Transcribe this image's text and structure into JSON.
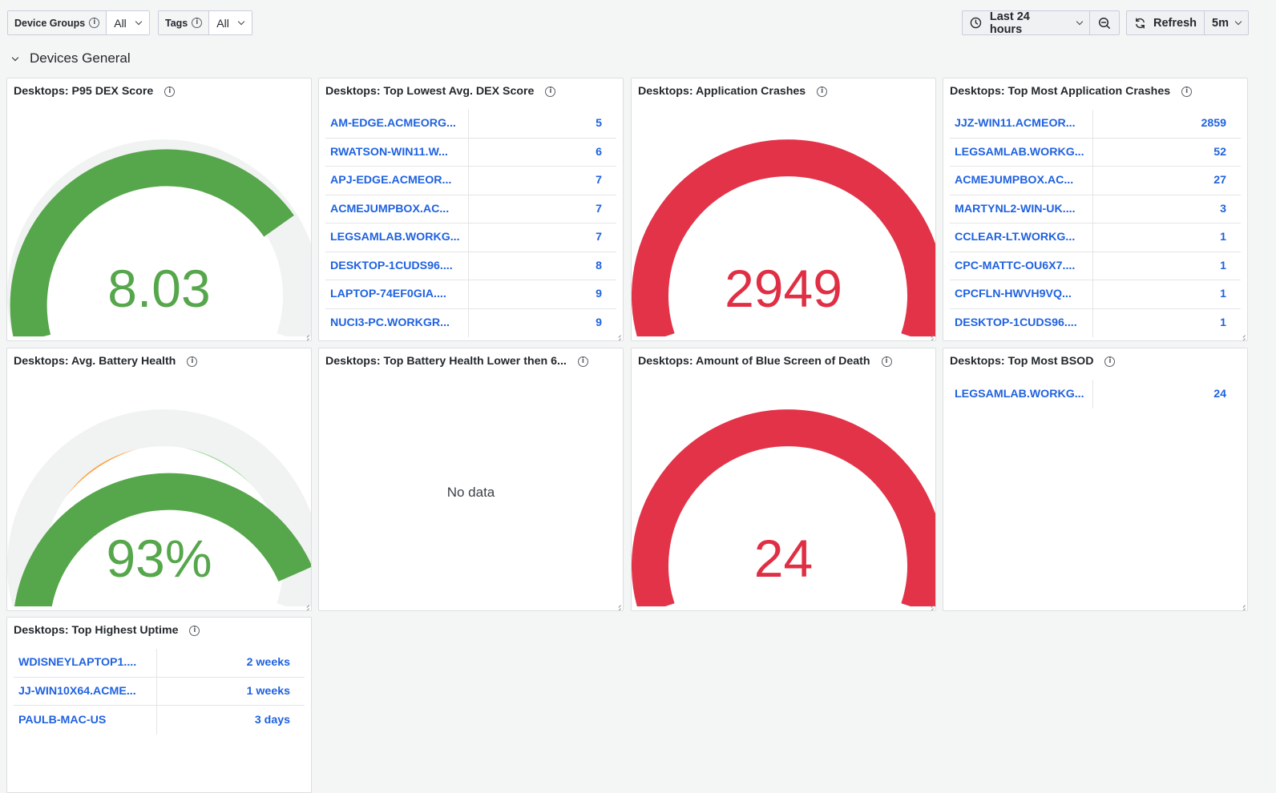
{
  "toolbar": {
    "device_groups_label": "Device Groups",
    "device_groups_value": "All",
    "tags_label": "Tags",
    "tags_value": "All",
    "time_range": "Last 24 hours",
    "refresh_label": "Refresh",
    "refresh_interval": "5m"
  },
  "row": {
    "title": "Devices General"
  },
  "colors": {
    "green": "#56a64b",
    "light_green": "#96d98d",
    "orange": "#ff9830",
    "orange_dark": "#f2802a",
    "yellow_orange": "#f7b261",
    "red": "#e02f44",
    "red_fill": "#e33348",
    "link": "#1f62e0"
  },
  "panels": {
    "p95_dex": {
      "title": "Desktops: P95 DEX Score",
      "value": "8.03",
      "fraction": 0.803
    },
    "lowest_dex": {
      "title": "Desktops: Top Lowest Avg. DEX Score",
      "rows": [
        {
          "name": "AM-EDGE.ACMEORG...",
          "value": "5"
        },
        {
          "name": "RWATSON-WIN11.W...",
          "value": "6"
        },
        {
          "name": "APJ-EDGE.ACMEOR...",
          "value": "7"
        },
        {
          "name": "ACMEJUMPBOX.AC...",
          "value": "7"
        },
        {
          "name": "LEGSAMLAB.WORKG...",
          "value": "7"
        },
        {
          "name": "DESKTOP-1CUDS96....",
          "value": "8"
        },
        {
          "name": "LAPTOP-74EF0GIA....",
          "value": "9"
        },
        {
          "name": "NUCI3-PC.WORKGR...",
          "value": "9"
        }
      ]
    },
    "app_crashes": {
      "title": "Desktops: Application Crashes",
      "value": "2949",
      "fraction": 1.0
    },
    "most_crashes": {
      "title": "Desktops: Top Most Application Crashes",
      "rows": [
        {
          "name": "JJZ-WIN11.ACMEOR...",
          "value": "2859"
        },
        {
          "name": "LEGSAMLAB.WORKG...",
          "value": "52"
        },
        {
          "name": "ACMEJUMPBOX.AC...",
          "value": "27"
        },
        {
          "name": "MARTYNL2-WIN-UK....",
          "value": "3"
        },
        {
          "name": "CCLEAR-LT.WORKG...",
          "value": "1"
        },
        {
          "name": "CPC-MATTC-OU6X7....",
          "value": "1"
        },
        {
          "name": "CPCFLN-HWVH9VQ...",
          "value": "1"
        },
        {
          "name": "DESKTOP-1CUDS96....",
          "value": "1"
        }
      ]
    },
    "battery_health": {
      "title": "Desktops: Avg. Battery Health",
      "value": "93%",
      "fraction": 0.93
    },
    "battery_lower": {
      "title": "Desktops: Top Battery Health Lower then 6...",
      "no_data": "No data"
    },
    "bsod_amount": {
      "title": "Desktops: Amount of Blue Screen of Death",
      "value": "24",
      "fraction": 1.0
    },
    "most_bsod": {
      "title": "Desktops: Top Most BSOD",
      "rows": [
        {
          "name": "LEGSAMLAB.WORKG...",
          "value": "24"
        }
      ]
    },
    "highest_uptime": {
      "title": "Desktops: Top Highest Uptime",
      "rows": [
        {
          "name": "WDISNEYLAPTOP1....",
          "value": "2 weeks"
        },
        {
          "name": "JJ-WIN10X64.ACME...",
          "value": "1 weeks"
        },
        {
          "name": "PAULB-MAC-US",
          "value": "3 days"
        }
      ]
    }
  }
}
